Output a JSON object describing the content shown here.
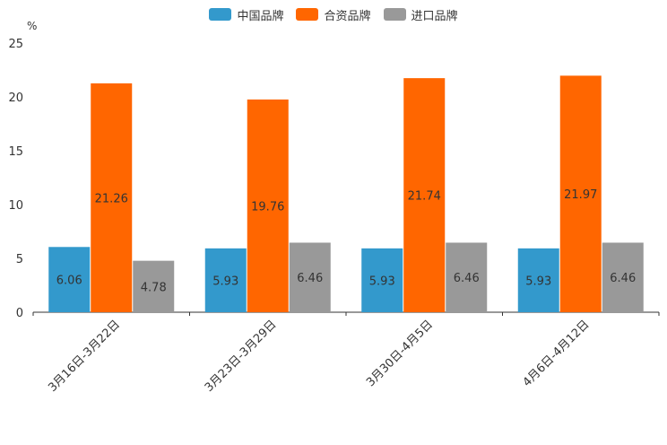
{
  "chart_data": {
    "type": "bar",
    "unit": "%",
    "categories": [
      "3月16日-3月22日",
      "3月23日-3月29日",
      "3月30日-4月5日",
      "4月6日-4月12日"
    ],
    "series": [
      {
        "name": "中国品牌",
        "color": "#3399cc",
        "values": [
          6.06,
          5.93,
          5.93,
          5.93
        ]
      },
      {
        "name": "合资品牌",
        "color": "#ff6600",
        "values": [
          21.26,
          19.76,
          21.74,
          21.97
        ]
      },
      {
        "name": "进口品牌",
        "color": "#999999",
        "values": [
          4.78,
          6.46,
          6.46,
          6.46
        ]
      }
    ],
    "ylim": [
      0,
      25
    ],
    "yticks": [
      0,
      5,
      10,
      15,
      20,
      25
    ],
    "ylabel": "%",
    "xlabel": "",
    "legend_position": "top-center",
    "grid": false
  }
}
